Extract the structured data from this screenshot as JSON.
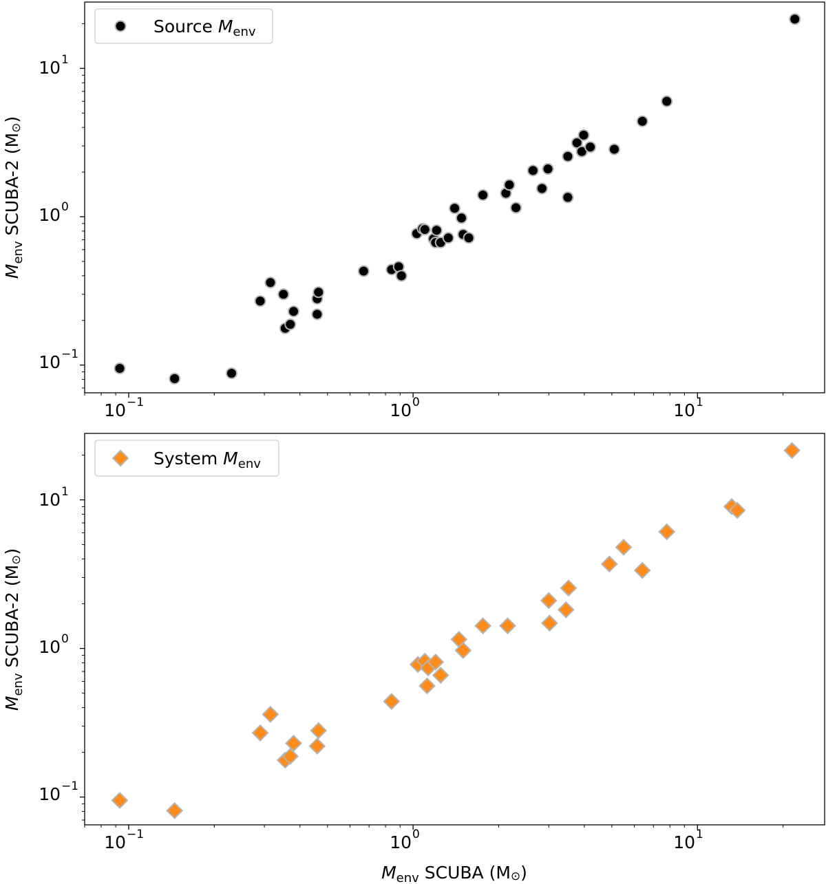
{
  "chart_data": [
    {
      "type": "scatter",
      "xscale": "log",
      "yscale": "log",
      "xlim": [
        0.07,
        28
      ],
      "ylim": [
        0.065,
        28
      ],
      "xticks": [
        {
          "base": "10",
          "exp": "−1",
          "value": 0.1
        },
        {
          "base": "10",
          "exp": "0",
          "value": 1
        },
        {
          "base": "10",
          "exp": "1",
          "value": 10
        }
      ],
      "yticks": [
        {
          "base": "10",
          "exp": "−1",
          "value": 0.1
        },
        {
          "base": "10",
          "exp": "0",
          "value": 1
        },
        {
          "base": "10",
          "exp": "1",
          "value": 10
        }
      ],
      "xlabel": "",
      "ylabel": {
        "sym": "M",
        "sub": "env",
        "rest": " SCUBA-2 (M",
        "sun": "⊙",
        "close": ")"
      },
      "legend": {
        "location": "upper-left",
        "label": "Source ",
        "sym": "M",
        "sub": "env"
      },
      "marker": "circle",
      "color": "#000000",
      "edge": "#b4b4b4",
      "series": [
        {
          "name": "Source Menv",
          "x": [
            0.093,
            0.145,
            0.23,
            0.29,
            0.315,
            0.35,
            0.355,
            0.37,
            0.38,
            0.46,
            0.46,
            0.465,
            0.67,
            0.84,
            0.89,
            0.91,
            1.03,
            1.08,
            1.1,
            1.18,
            1.2,
            1.21,
            1.25,
            1.33,
            1.4,
            1.48,
            1.5,
            1.57,
            1.76,
            2.12,
            2.18,
            2.3,
            2.64,
            2.84,
            2.98,
            3.5,
            3.5,
            3.77,
            3.92,
            3.98,
            4.2,
            5.1,
            6.4,
            7.8,
            22.0
          ],
          "y": [
            0.095,
            0.081,
            0.088,
            0.27,
            0.36,
            0.3,
            0.177,
            0.188,
            0.23,
            0.22,
            0.28,
            0.31,
            0.43,
            0.44,
            0.46,
            0.4,
            0.77,
            0.83,
            0.82,
            0.71,
            0.67,
            0.81,
            0.67,
            0.72,
            1.14,
            0.98,
            0.76,
            0.72,
            1.4,
            1.44,
            1.64,
            1.15,
            2.05,
            1.55,
            2.1,
            2.55,
            1.35,
            3.15,
            2.75,
            3.55,
            2.95,
            2.85,
            4.4,
            6.0,
            21.5
          ]
        }
      ]
    },
    {
      "type": "scatter",
      "xscale": "log",
      "yscale": "log",
      "xlim": [
        0.07,
        28
      ],
      "ylim": [
        0.065,
        28
      ],
      "xticks": [
        {
          "base": "10",
          "exp": "−1",
          "value": 0.1
        },
        {
          "base": "10",
          "exp": "0",
          "value": 1
        },
        {
          "base": "10",
          "exp": "1",
          "value": 10
        }
      ],
      "yticks": [
        {
          "base": "10",
          "exp": "−1",
          "value": 0.1
        },
        {
          "base": "10",
          "exp": "0",
          "value": 1
        },
        {
          "base": "10",
          "exp": "1",
          "value": 10
        }
      ],
      "xlabel": {
        "sym": "M",
        "sub": "env",
        "rest": " SCUBA (M",
        "sun": "⊙",
        "close": ")"
      },
      "ylabel": {
        "sym": "M",
        "sub": "env",
        "rest": " SCUBA-2 (M",
        "sun": "⊙",
        "close": ")"
      },
      "legend": {
        "location": "upper-left",
        "label": "System ",
        "sym": "M",
        "sub": "env"
      },
      "marker": "diamond",
      "color": "#ff8c1a",
      "edge": "#b4b4b4",
      "series": [
        {
          "name": "System Menv",
          "x": [
            0.093,
            0.145,
            0.29,
            0.315,
            0.355,
            0.37,
            0.38,
            0.46,
            0.465,
            0.84,
            1.04,
            1.1,
            1.12,
            1.13,
            1.2,
            1.25,
            1.45,
            1.5,
            1.76,
            2.15,
            3.0,
            3.02,
            3.45,
            3.52,
            4.9,
            5.5,
            6.4,
            7.8,
            13.2,
            13.8,
            21.5
          ],
          "y": [
            0.095,
            0.081,
            0.27,
            0.36,
            0.177,
            0.188,
            0.23,
            0.22,
            0.28,
            0.44,
            0.78,
            0.82,
            0.56,
            0.74,
            0.81,
            0.66,
            1.15,
            0.97,
            1.42,
            1.42,
            2.1,
            1.48,
            1.82,
            2.55,
            3.7,
            4.8,
            3.35,
            6.1,
            9.0,
            8.5,
            21.5
          ]
        }
      ]
    }
  ]
}
